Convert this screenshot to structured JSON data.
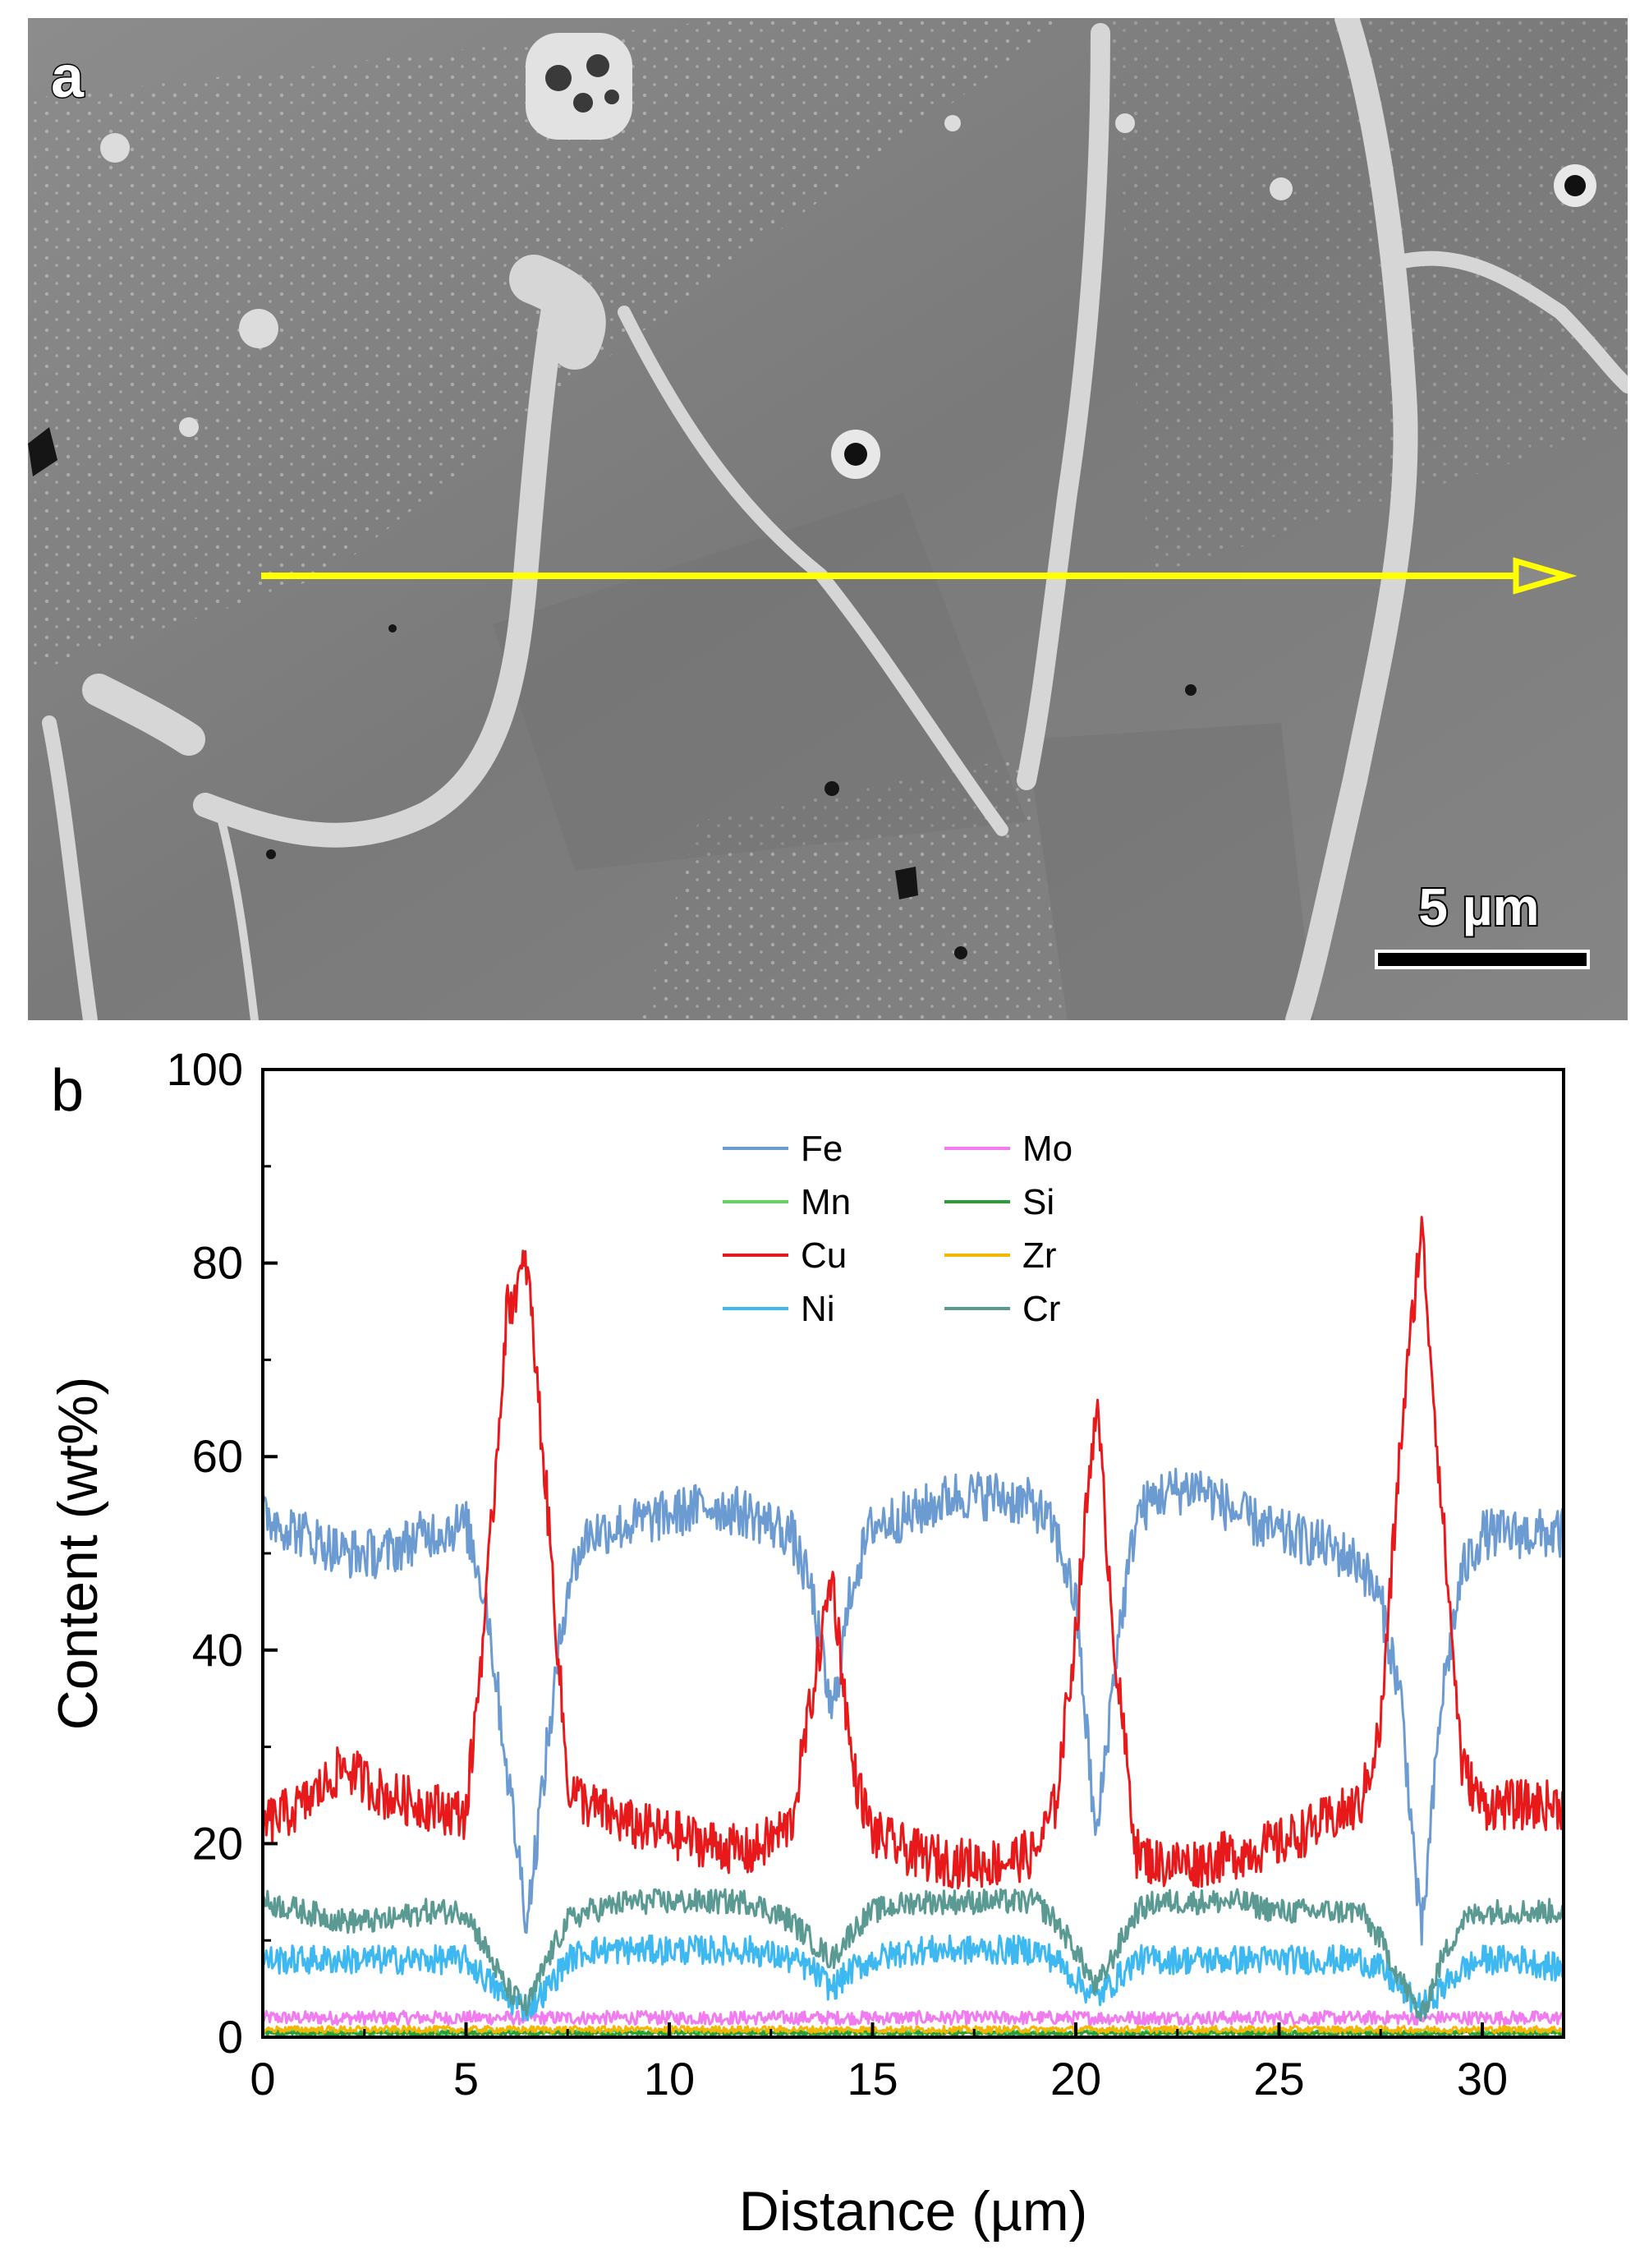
{
  "panel_a": {
    "label": "a",
    "scale_bar_label": "5 µm"
  },
  "panel_b": {
    "label": "b"
  },
  "chart_data": {
    "type": "line",
    "xlabel": "Distance (µm)",
    "ylabel": "Content (wt%)",
    "xlim": [
      0,
      32
    ],
    "ylim": [
      0,
      100
    ],
    "xticks": [
      0,
      5,
      10,
      15,
      20,
      25,
      30
    ],
    "yticks": [
      0,
      20,
      40,
      60,
      80,
      100
    ],
    "grid": false,
    "legend": {
      "placement": "top-center",
      "columns": 2
    },
    "x": [
      0,
      1,
      2,
      3,
      4,
      5,
      5.5,
      6,
      6.5,
      7,
      7.5,
      8,
      9,
      10,
      11,
      12,
      13,
      13.5,
      14,
      14.5,
      15,
      16,
      17,
      18,
      19,
      19.5,
      20,
      20.5,
      21,
      21.5,
      22,
      23,
      24,
      25,
      26,
      27,
      27.5,
      28,
      28.5,
      29,
      29.5,
      30,
      31,
      32
    ],
    "series": [
      {
        "name": "Fe",
        "color": "#6b9bd1",
        "values": [
          54,
          52,
          50,
          50,
          52,
          53,
          45,
          28,
          12,
          30,
          47,
          52,
          53,
          54,
          55,
          54,
          52,
          46,
          33,
          47,
          53,
          54,
          56,
          56,
          55,
          52,
          45,
          20,
          40,
          54,
          56,
          57,
          54,
          52,
          51,
          49,
          45,
          35,
          10,
          35,
          48,
          52,
          52,
          52
        ]
      },
      {
        "name": "Mo",
        "color": "#f07cf0",
        "values": [
          2,
          2,
          2,
          2,
          2,
          2,
          2,
          2,
          2,
          2,
          2,
          2,
          2,
          2,
          2,
          2,
          2,
          2,
          2,
          2,
          2,
          2,
          2,
          2,
          2,
          2,
          2,
          2,
          2,
          2,
          2,
          2,
          2,
          2,
          2,
          2,
          2,
          2,
          2,
          2,
          2,
          2,
          2,
          2
        ]
      },
      {
        "name": "Mn",
        "color": "#5fd35f",
        "values": [
          0.5,
          0.5,
          0.5,
          0.5,
          0.5,
          0.5,
          0.5,
          0.5,
          0.5,
          0.5,
          0.5,
          0.5,
          0.5,
          0.5,
          0.5,
          0.5,
          0.5,
          0.5,
          0.5,
          0.5,
          0.5,
          0.5,
          0.5,
          0.5,
          0.5,
          0.5,
          0.5,
          0.5,
          0.5,
          0.5,
          0.5,
          0.5,
          0.5,
          0.5,
          0.5,
          0.5,
          0.5,
          0.5,
          0.5,
          0.5,
          0.5,
          0.5,
          0.5,
          0.5
        ]
      },
      {
        "name": "Si",
        "color": "#2a9d3a",
        "values": [
          0.4,
          0.4,
          0.4,
          0.4,
          0.4,
          0.4,
          0.4,
          0.4,
          0.4,
          0.4,
          0.4,
          0.4,
          0.4,
          0.4,
          0.4,
          0.4,
          0.4,
          0.4,
          0.4,
          0.4,
          0.4,
          0.4,
          0.4,
          0.4,
          0.4,
          0.4,
          0.4,
          0.4,
          0.4,
          0.4,
          0.4,
          0.4,
          0.4,
          0.4,
          0.4,
          0.4,
          0.4,
          0.4,
          0.4,
          0.4,
          0.4,
          0.4,
          0.4,
          0.4
        ]
      },
      {
        "name": "Cu",
        "color": "#e8191a",
        "values": [
          22,
          24,
          28,
          25,
          24,
          23,
          45,
          75,
          80,
          55,
          26,
          24,
          22,
          21,
          20,
          19,
          22,
          35,
          48,
          28,
          21,
          19,
          18,
          18,
          19,
          24,
          42,
          66,
          38,
          19,
          18,
          18,
          19,
          20,
          22,
          24,
          32,
          62,
          84,
          55,
          28,
          24,
          24,
          24
        ]
      },
      {
        "name": "Zr",
        "color": "#f2b705",
        "values": [
          0.8,
          0.8,
          0.8,
          0.8,
          0.8,
          0.8,
          0.8,
          0.8,
          0.8,
          0.8,
          0.8,
          0.8,
          0.8,
          0.8,
          0.8,
          0.8,
          0.8,
          0.8,
          0.8,
          0.8,
          0.8,
          0.8,
          0.8,
          0.8,
          0.8,
          0.8,
          0.8,
          0.8,
          0.8,
          0.8,
          0.8,
          0.8,
          0.8,
          0.8,
          0.8,
          0.8,
          0.8,
          0.8,
          0.8,
          0.8,
          0.8,
          0.8,
          0.8,
          0.8
        ]
      },
      {
        "name": "Ni",
        "color": "#3db8f0",
        "values": [
          8,
          8,
          8,
          8,
          8,
          8,
          6,
          4,
          3,
          5,
          8,
          9,
          9,
          9,
          9,
          9,
          8,
          7,
          5,
          7,
          8,
          9,
          9,
          9,
          9,
          8,
          6,
          4,
          6,
          8,
          8,
          8,
          8,
          8,
          8,
          8,
          7,
          5,
          3,
          5,
          7,
          8,
          8,
          7
        ]
      },
      {
        "name": "Cr",
        "color": "#5a9a93",
        "values": [
          14,
          13,
          12,
          12,
          13,
          13,
          9,
          5,
          3,
          8,
          12,
          13,
          14,
          14,
          14,
          14,
          12,
          10,
          8,
          11,
          13,
          14,
          14,
          14,
          14,
          12,
          9,
          5,
          9,
          13,
          14,
          14,
          14,
          13,
          13,
          13,
          10,
          6,
          2,
          8,
          12,
          13,
          13,
          13
        ]
      }
    ]
  }
}
